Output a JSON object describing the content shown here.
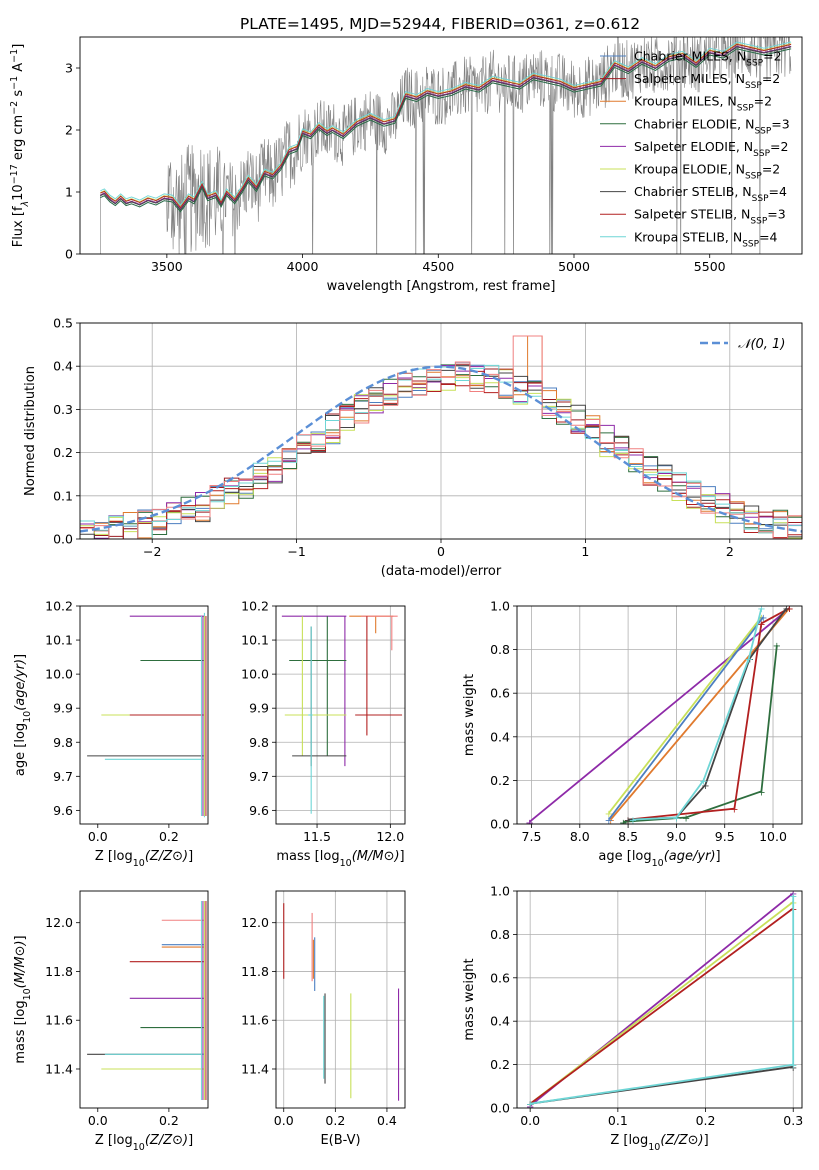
{
  "figure": {
    "title": "PLATE=1495, MJD=52944, FIBERID=0361, z=0.612"
  },
  "series_colors": {
    "chabrier_miles": "#4c7fc0",
    "salpeter_miles": "#9c1b22",
    "kroupa_miles": "#e07a2e",
    "chabrier_elodie": "#2e6e3e",
    "salpeter_elodie": "#8e2aa8",
    "kroupa_elodie": "#c8e05a",
    "chabrier_stelib": "#444444",
    "salpeter_stelib": "#b22020",
    "kroupa_stelib": "#6fd6d6",
    "data": "#7f7f7f",
    "normal": "#5b8fd6",
    "pink": "#f08080"
  },
  "chart_data": [
    {
      "id": "spectrum",
      "type": "line",
      "xlabel": "wavelength [Angstrom, rest frame]",
      "ylabel": "Flux [f_λ 10^-17 erg cm^-2 s^-1 A^-1]",
      "xlim": [
        3180,
        5840
      ],
      "ylim": [
        0,
        3.5
      ],
      "xticks": [
        3500,
        4000,
        4500,
        5000,
        5500
      ],
      "yticks": [
        0,
        1,
        2,
        3
      ],
      "legend_position": "top-right",
      "legend": [
        {
          "label": "Chabrier MILES, N_SSP=2",
          "key": "chabrier_miles"
        },
        {
          "label": "Salpeter MILES, N_SSP=2",
          "key": "salpeter_miles"
        },
        {
          "label": "Kroupa MILES, N_SSP=2",
          "key": "kroupa_miles"
        },
        {
          "label": "Chabrier ELODIE, N_SSP=3",
          "key": "chabrier_elodie"
        },
        {
          "label": "Salpeter ELODIE, N_SSP=2",
          "key": "salpeter_elodie"
        },
        {
          "label": "Kroupa ELODIE, N_SSP=2",
          "key": "kroupa_elodie"
        },
        {
          "label": "Chabrier STELIB, N_SSP=4",
          "key": "chabrier_stelib"
        },
        {
          "label": "Salpeter STELIB, N_SSP=3",
          "key": "salpeter_stelib"
        },
        {
          "label": "Kroupa STELIB, N_SSP=4",
          "key": "kroupa_stelib"
        }
      ],
      "model_curve": {
        "x": [
          3255,
          3270,
          3290,
          3310,
          3330,
          3350,
          3370,
          3400,
          3430,
          3460,
          3490,
          3520,
          3550,
          3580,
          3600,
          3630,
          3650,
          3680,
          3700,
          3720,
          3750,
          3780,
          3800,
          3830,
          3860,
          3890,
          3920,
          3950,
          3980,
          4000,
          4030,
          4060,
          4090,
          4110,
          4150,
          4200,
          4250,
          4300,
          4340,
          4380,
          4420,
          4460,
          4500,
          4550,
          4600,
          4650,
          4700,
          4750,
          4800,
          4850,
          4900,
          4950,
          5000,
          5050,
          5100,
          5150,
          5200,
          5250,
          5300,
          5350,
          5400,
          5450,
          5500,
          5550,
          5600,
          5650,
          5700,
          5750,
          5800
        ],
        "y": [
          0.95,
          0.98,
          0.88,
          0.82,
          0.9,
          0.82,
          0.85,
          0.8,
          0.87,
          0.83,
          0.9,
          0.88,
          0.72,
          0.9,
          0.85,
          1.1,
          0.9,
          0.95,
          0.8,
          0.98,
          0.85,
          1.05,
          1.2,
          1.05,
          1.3,
          1.25,
          1.4,
          1.65,
          1.7,
          1.95,
          1.9,
          2.05,
          1.95,
          2.0,
          1.9,
          2.1,
          2.2,
          2.1,
          2.15,
          2.55,
          2.5,
          2.6,
          2.55,
          2.6,
          2.7,
          2.65,
          2.8,
          2.75,
          2.7,
          2.85,
          2.8,
          2.75,
          2.65,
          2.7,
          2.75,
          3.05,
          2.95,
          3.1,
          3.0,
          3.15,
          3.2,
          3.05,
          3.25,
          3.2,
          3.35,
          3.3,
          3.25,
          3.3,
          3.35
        ]
      },
      "data_range": [
        3255,
        5800
      ]
    },
    {
      "id": "residual_hist",
      "type": "line",
      "xlabel": "(data-model)/error",
      "ylabel": "Normed distribution",
      "xlim": [
        -2.5,
        2.5
      ],
      "ylim": [
        0,
        0.5
      ],
      "xticks": [
        -2,
        -1,
        0,
        1,
        2
      ],
      "yticks": [
        0.0,
        0.1,
        0.2,
        0.3,
        0.4,
        0.5
      ],
      "legend_position": "top-right",
      "legend_label": "𝒩(0, 1)",
      "bin_width": 0.1
    },
    {
      "id": "age_vs_Z",
      "type": "scatter",
      "xlabel": "Z [log10(Z/Z⊙)]",
      "ylabel": "age  [log10(age/yr)]",
      "xlim": [
        -0.05,
        0.31
      ],
      "ylim": [
        9.56,
        10.2
      ],
      "xticks": [
        0.0,
        0.2
      ],
      "yticks": [
        9.6,
        9.7,
        9.8,
        9.9,
        10.0,
        10.1,
        10.2
      ],
      "points": [
        {
          "key": "salpeter_elodie",
          "x": 0.3,
          "y": 10.17,
          "xerr_low": 0.21
        },
        {
          "key": "chabrier_elodie",
          "x": 0.3,
          "y": 10.04,
          "xerr_low": 0.18
        },
        {
          "key": "kroupa_elodie",
          "x": 0.3,
          "y": 9.88,
          "xerr_low": 0.29
        },
        {
          "key": "salpeter_stelib",
          "x": 0.3,
          "y": 9.88,
          "xerr_low": 0.21
        },
        {
          "key": "chabrier_stelib",
          "x": 0.3,
          "y": 9.76,
          "xerr_low": 0.33
        },
        {
          "key": "kroupa_stelib",
          "x": 0.3,
          "y": 9.75,
          "xerr_low": 0.28
        },
        {
          "key": "kroupa_stelib",
          "x": 0.3,
          "y": 9.88,
          "yerr_low": 0.3,
          "yerr_high": 0.3
        }
      ]
    },
    {
      "id": "age_vs_mass",
      "type": "scatter",
      "xlabel": "mass [log10(M/M⊙)]",
      "ylabel": "",
      "xlim": [
        11.22,
        12.1
      ],
      "ylim": [
        9.56,
        10.2
      ],
      "xticks": [
        11.5,
        12.0
      ],
      "yticks": [
        9.6,
        9.7,
        9.8,
        9.9,
        10.0,
        10.1,
        10.2
      ],
      "points": [
        {
          "key": "salpeter_elodie",
          "x": 11.69,
          "y": 10.17,
          "xlo": 11.26,
          "xhi": 11.7,
          "ylo": 9.73,
          "yhi": 10.17
        },
        {
          "key": "kroupa_miles",
          "x": 11.9,
          "y": 10.17,
          "xlo": 11.72,
          "xhi": 12.02,
          "ylo": 10.12,
          "yhi": 10.17
        },
        {
          "key": "pink",
          "x": 12.01,
          "y": 10.17,
          "xlo": 11.8,
          "xhi": 12.05,
          "ylo": 10.07,
          "yhi": 10.17
        },
        {
          "key": "chabrier_elodie",
          "x": 11.57,
          "y": 10.04,
          "xlo": 11.31,
          "xhi": 11.7,
          "ylo": 9.76,
          "yhi": 10.17
        },
        {
          "key": "kroupa_elodie",
          "x": 11.4,
          "y": 9.88,
          "xlo": 11.28,
          "xhi": 11.7,
          "ylo": 9.76,
          "yhi": 10.17
        },
        {
          "key": "salpeter_stelib",
          "x": 11.84,
          "y": 9.88,
          "xlo": 11.76,
          "xhi": 12.08,
          "ylo": 9.82,
          "yhi": 10.17
        },
        {
          "key": "chabrier_stelib",
          "x": 11.46,
          "y": 9.76,
          "xlo": 11.33,
          "xhi": 11.7,
          "ylo": 9.73,
          "yhi": 10.14
        },
        {
          "key": "kroupa_stelib",
          "x": 11.46,
          "y": 9.88,
          "xlo": 11.44,
          "xhi": 11.47,
          "ylo": 9.59,
          "yhi": 10.14
        }
      ]
    },
    {
      "id": "cum_age",
      "type": "line",
      "xlabel": "age  [log10(age/yr)]",
      "ylabel": "mass weight",
      "xlim": [
        7.35,
        10.3
      ],
      "ylim": [
        0,
        1
      ],
      "xticks": [
        7.5,
        8.0,
        8.5,
        9.0,
        9.5,
        10.0
      ],
      "yticks": [
        0.0,
        0.2,
        0.4,
        0.6,
        0.8,
        1.0
      ],
      "series": [
        {
          "key": "salpeter_elodie",
          "x": [
            7.48,
            10.17
          ],
          "y": [
            0.01,
            0.99
          ]
        },
        {
          "key": "kroupa_elodie",
          "x": [
            8.3,
            9.88
          ],
          "y": [
            0.05,
            0.95
          ]
        },
        {
          "key": "kroupa_miles",
          "x": [
            8.32,
            10.17
          ],
          "y": [
            0.02,
            0.99
          ]
        },
        {
          "key": "chabrier_miles",
          "x": [
            8.3,
            9.9
          ],
          "y": [
            0.02,
            0.95
          ]
        },
        {
          "key": "chabrier_elodie",
          "x": [
            8.45,
            9.1,
            9.88,
            10.04
          ],
          "y": [
            0.01,
            0.03,
            0.15,
            0.82
          ]
        },
        {
          "key": "salpeter_stelib",
          "x": [
            8.5,
            9.6,
            9.88,
            10.17
          ],
          "y": [
            0.02,
            0.07,
            0.92,
            0.99
          ]
        },
        {
          "key": "chabrier_stelib",
          "x": [
            8.5,
            9.0,
            9.3,
            9.76,
            10.14
          ],
          "y": [
            0.02,
            0.03,
            0.18,
            0.76,
            0.99
          ]
        },
        {
          "key": "kroupa_stelib",
          "x": [
            8.55,
            9.0,
            9.28,
            9.75,
            9.88
          ],
          "y": [
            0.02,
            0.03,
            0.2,
            0.76,
            0.99
          ]
        }
      ]
    },
    {
      "id": "mass_vs_Z",
      "type": "scatter",
      "xlabel": "Z [log10(Z/Z⊙)]",
      "ylabel": "mass [log10(M/M⊙)]",
      "xlim": [
        -0.05,
        0.31
      ],
      "ylim": [
        11.24,
        12.13
      ],
      "xticks": [
        0.0,
        0.2
      ],
      "yticks": [
        11.4,
        11.6,
        11.8,
        12.0
      ],
      "points": [
        {
          "key": "pink",
          "x": 0.3,
          "y": 12.01,
          "xerr_low": 0.12
        },
        {
          "key": "chabrier_miles",
          "x": 0.3,
          "y": 11.91,
          "xerr_low": 0.12
        },
        {
          "key": "kroupa_miles",
          "x": 0.3,
          "y": 11.9,
          "xerr_low": 0.12
        },
        {
          "key": "salpeter_stelib",
          "x": 0.3,
          "y": 11.84,
          "xerr_low": 0.21
        },
        {
          "key": "salpeter_elodie",
          "x": 0.3,
          "y": 11.69,
          "xerr_low": 0.21
        },
        {
          "key": "chabrier_elodie",
          "x": 0.3,
          "y": 11.57,
          "xerr_low": 0.18
        },
        {
          "key": "chabrier_stelib",
          "x": 0.3,
          "y": 11.46,
          "xerr_low": 0.33
        },
        {
          "key": "kroupa_stelib",
          "x": 0.3,
          "y": 11.46,
          "xerr_low": 0.28
        },
        {
          "key": "kroupa_elodie",
          "x": 0.3,
          "y": 11.4,
          "xerr_low": 0.29
        }
      ]
    },
    {
      "id": "mass_vs_ebv",
      "type": "scatter",
      "xlabel": "E(B-V)",
      "ylabel": "",
      "xlim": [
        -0.03,
        0.47
      ],
      "ylim": [
        11.24,
        12.13
      ],
      "xticks": [
        0.0,
        0.2,
        0.4
      ],
      "yticks": [
        11.4,
        11.6,
        11.8,
        12.0
      ],
      "points": [
        {
          "key": "salpeter_stelib",
          "x": 0.0,
          "ylo": 11.77,
          "yhi": 12.08
        },
        {
          "key": "pink",
          "x": 0.11,
          "ylo": 11.76,
          "yhi": 12.04
        },
        {
          "key": "chabrier_miles",
          "x": 0.12,
          "ylo": 11.72,
          "yhi": 11.94
        },
        {
          "key": "kroupa_miles",
          "x": 0.115,
          "ylo": 11.77,
          "yhi": 11.93
        },
        {
          "key": "chabrier_stelib",
          "x": 0.16,
          "ylo": 11.34,
          "yhi": 11.71
        },
        {
          "key": "kroupa_stelib",
          "x": 0.155,
          "ylo": 11.36,
          "yhi": 11.7
        },
        {
          "key": "kroupa_elodie",
          "x": 0.26,
          "ylo": 11.28,
          "yhi": 11.71
        },
        {
          "key": "salpeter_elodie",
          "x": 0.445,
          "ylo": 11.27,
          "yhi": 11.73
        }
      ]
    },
    {
      "id": "cum_Z",
      "type": "line",
      "xlabel": "Z [log10(Z/Z⊙)]",
      "ylabel": "mass weight",
      "xlim": [
        -0.015,
        0.31
      ],
      "ylim": [
        0,
        1
      ],
      "xticks": [
        0.0,
        0.1,
        0.2,
        0.3
      ],
      "yticks": [
        0.0,
        0.2,
        0.4,
        0.6,
        0.8,
        1.0
      ],
      "series": [
        {
          "key": "salpeter_elodie",
          "x": [
            0.0,
            0.3
          ],
          "y": [
            0.01,
            0.99
          ]
        },
        {
          "key": "kroupa_elodie",
          "x": [
            0.0,
            0.3
          ],
          "y": [
            0.02,
            0.95
          ]
        },
        {
          "key": "salpeter_stelib",
          "x": [
            0.0,
            0.3
          ],
          "y": [
            0.02,
            0.92
          ]
        },
        {
          "key": "chabrier_stelib",
          "x": [
            0.0,
            0.3
          ],
          "y": [
            0.02,
            0.19
          ]
        },
        {
          "key": "kroupa_stelib",
          "x": [
            0.0,
            0.3,
            0.3
          ],
          "y": [
            0.02,
            0.2,
            0.98
          ]
        }
      ]
    }
  ]
}
